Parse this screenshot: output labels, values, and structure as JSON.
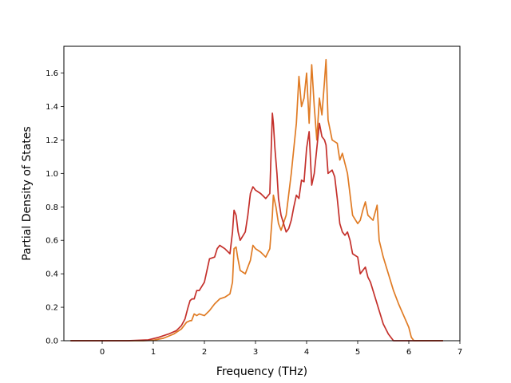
{
  "chart_data": {
    "type": "line",
    "title": "",
    "xlabel": "Frequency (THz)",
    "ylabel": "Partial Density of States",
    "xlim": [
      -0.75,
      7.0
    ],
    "ylim": [
      0.0,
      1.76
    ],
    "xticks": [
      "0",
      "1",
      "2",
      "3",
      "4",
      "5",
      "6",
      "7"
    ],
    "yticks": [
      "0.0",
      "0.2",
      "0.4",
      "0.6",
      "0.8",
      "1.0",
      "1.2",
      "1.4",
      "1.6"
    ],
    "grid": false,
    "legend": "none",
    "series": [
      {
        "color": "#e07b24",
        "x": [
          -0.62,
          0.0,
          0.5,
          0.8,
          1.0,
          1.2,
          1.4,
          1.55,
          1.65,
          1.72,
          1.75,
          1.8,
          1.85,
          1.9,
          2.0,
          2.1,
          2.2,
          2.3,
          2.4,
          2.5,
          2.55,
          2.58,
          2.62,
          2.65,
          2.7,
          2.8,
          2.9,
          2.95,
          3.0,
          3.1,
          3.2,
          3.28,
          3.33,
          3.35,
          3.4,
          3.45,
          3.5,
          3.6,
          3.7,
          3.8,
          3.85,
          3.9,
          3.95,
          4.0,
          4.05,
          4.1,
          4.15,
          4.2,
          4.25,
          4.3,
          4.35,
          4.38,
          4.42,
          4.5,
          4.6,
          4.65,
          4.7,
          4.8,
          4.9,
          5.0,
          5.05,
          5.1,
          5.15,
          5.2,
          5.3,
          5.38,
          5.42,
          5.5,
          5.6,
          5.7,
          5.8,
          5.9,
          6.0,
          6.05,
          6.1,
          6.3,
          6.67
        ],
        "y": [
          0.0,
          0.0,
          0.0,
          0.0,
          0.003,
          0.015,
          0.04,
          0.07,
          0.11,
          0.12,
          0.12,
          0.16,
          0.15,
          0.16,
          0.15,
          0.18,
          0.22,
          0.25,
          0.26,
          0.28,
          0.35,
          0.55,
          0.56,
          0.5,
          0.42,
          0.4,
          0.48,
          0.57,
          0.55,
          0.53,
          0.5,
          0.55,
          0.75,
          0.87,
          0.8,
          0.7,
          0.66,
          0.75,
          1.0,
          1.3,
          1.58,
          1.4,
          1.45,
          1.6,
          1.3,
          1.65,
          1.4,
          1.2,
          1.45,
          1.35,
          1.55,
          1.68,
          1.32,
          1.2,
          1.18,
          1.08,
          1.12,
          1.0,
          0.75,
          0.7,
          0.72,
          0.78,
          0.83,
          0.75,
          0.72,
          0.81,
          0.6,
          0.5,
          0.4,
          0.3,
          0.22,
          0.15,
          0.08,
          0.02,
          0.0,
          0.0,
          0.0
        ]
      },
      {
        "color": "#c4302b",
        "x": [
          -0.62,
          0.0,
          0.5,
          0.9,
          1.1,
          1.3,
          1.45,
          1.55,
          1.62,
          1.68,
          1.72,
          1.76,
          1.8,
          1.85,
          1.9,
          2.0,
          2.05,
          2.1,
          2.2,
          2.25,
          2.3,
          2.4,
          2.5,
          2.55,
          2.58,
          2.62,
          2.66,
          2.7,
          2.8,
          2.85,
          2.9,
          2.95,
          3.0,
          3.1,
          3.2,
          3.28,
          3.33,
          3.35,
          3.38,
          3.42,
          3.45,
          3.5,
          3.55,
          3.6,
          3.65,
          3.7,
          3.75,
          3.8,
          3.85,
          3.9,
          3.95,
          4.0,
          4.05,
          4.1,
          4.15,
          4.2,
          4.25,
          4.3,
          4.35,
          4.38,
          4.42,
          4.5,
          4.55,
          4.6,
          4.65,
          4.7,
          4.75,
          4.8,
          4.85,
          4.9,
          5.0,
          5.05,
          5.1,
          5.15,
          5.2,
          5.25,
          5.3,
          5.35,
          5.4,
          5.45,
          5.5,
          5.6,
          5.7,
          5.8,
          5.9,
          6.0,
          6.05,
          6.1,
          6.3,
          6.67
        ],
        "y": [
          0.0,
          0.0,
          0.0,
          0.005,
          0.02,
          0.04,
          0.06,
          0.09,
          0.13,
          0.2,
          0.24,
          0.25,
          0.25,
          0.3,
          0.3,
          0.35,
          0.42,
          0.49,
          0.5,
          0.55,
          0.57,
          0.55,
          0.52,
          0.65,
          0.78,
          0.75,
          0.65,
          0.6,
          0.65,
          0.75,
          0.88,
          0.92,
          0.9,
          0.88,
          0.85,
          0.88,
          1.36,
          1.3,
          1.15,
          1.0,
          0.85,
          0.75,
          0.7,
          0.65,
          0.67,
          0.72,
          0.8,
          0.87,
          0.85,
          0.96,
          0.95,
          1.15,
          1.25,
          0.93,
          1.0,
          1.15,
          1.3,
          1.22,
          1.2,
          1.17,
          1.0,
          1.02,
          0.98,
          0.85,
          0.7,
          0.65,
          0.63,
          0.65,
          0.6,
          0.52,
          0.5,
          0.4,
          0.42,
          0.44,
          0.38,
          0.35,
          0.3,
          0.25,
          0.2,
          0.15,
          0.1,
          0.04,
          0.0,
          0.0,
          0.0,
          0.0,
          0.0,
          0.0,
          0.0,
          0.0
        ]
      }
    ]
  }
}
